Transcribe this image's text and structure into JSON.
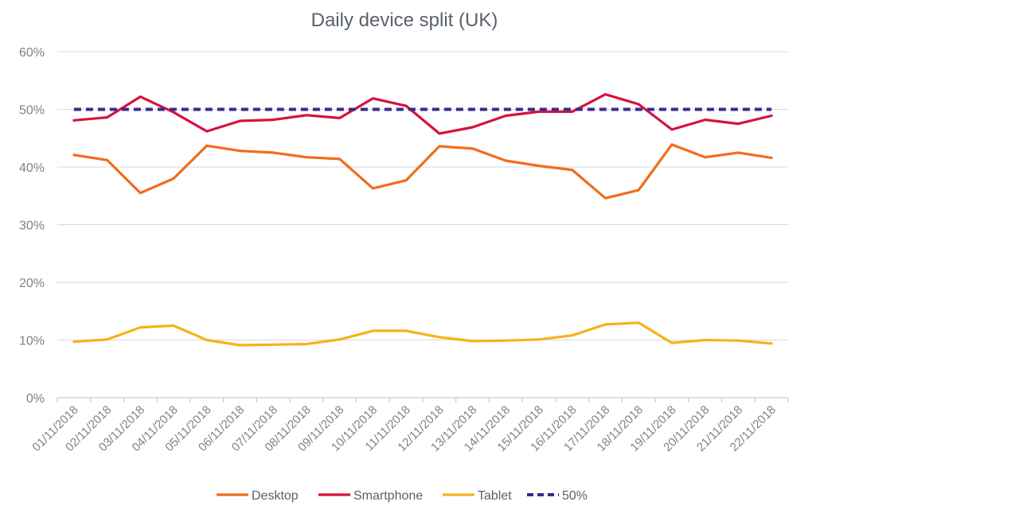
{
  "chart_data": {
    "type": "line",
    "title": "Daily device split (UK)",
    "xlabel": "",
    "ylabel": "",
    "ylim": [
      0,
      60
    ],
    "yticks": [
      "0%",
      "10%",
      "20%",
      "30%",
      "40%",
      "50%",
      "60%"
    ],
    "y_tick_values": [
      0,
      10,
      20,
      30,
      40,
      50,
      60
    ],
    "grid": true,
    "legend_position": "bottom",
    "categories": [
      "01/11/2018",
      "02/11/2018",
      "03/11/2018",
      "04/11/2018",
      "05/11/2018",
      "06/11/2018",
      "07/11/2018",
      "08/11/2018",
      "09/11/2018",
      "10/11/2018",
      "11/11/2018",
      "12/11/2018",
      "13/11/2018",
      "14/11/2018",
      "15/11/2018",
      "16/11/2018",
      "17/11/2018",
      "18/11/2018",
      "19/11/2018",
      "20/11/2018",
      "21/11/2018",
      "22/11/2018"
    ],
    "series": [
      {
        "name": "Desktop",
        "color": "#f26b1d",
        "dashed": false,
        "values": [
          42.1,
          41.2,
          35.5,
          38.0,
          43.7,
          42.8,
          42.5,
          41.7,
          41.4,
          36.3,
          37.7,
          43.6,
          43.2,
          41.1,
          40.2,
          39.5,
          34.6,
          36.0,
          43.9,
          41.7,
          42.5,
          41.6
        ]
      },
      {
        "name": "Smartphone",
        "color": "#d6123d",
        "dashed": false,
        "values": [
          48.1,
          48.6,
          52.2,
          49.5,
          46.2,
          48.0,
          48.2,
          49.0,
          48.5,
          51.9,
          50.6,
          45.8,
          46.9,
          48.9,
          49.6,
          49.6,
          52.6,
          50.9,
          46.5,
          48.2,
          47.5,
          48.9
        ]
      },
      {
        "name": "Tablet",
        "color": "#f8b119",
        "dashed": false,
        "values": [
          9.7,
          10.1,
          12.2,
          12.5,
          10.0,
          9.1,
          9.2,
          9.3,
          10.1,
          11.6,
          11.6,
          10.5,
          9.8,
          9.9,
          10.1,
          10.8,
          12.7,
          13.0,
          9.5,
          10.0,
          9.9,
          9.4
        ]
      },
      {
        "name": "50%",
        "color": "#3d2a8c",
        "dashed": true,
        "values": [
          50,
          50,
          50,
          50,
          50,
          50,
          50,
          50,
          50,
          50,
          50,
          50,
          50,
          50,
          50,
          50,
          50,
          50,
          50,
          50,
          50,
          50
        ]
      }
    ]
  }
}
